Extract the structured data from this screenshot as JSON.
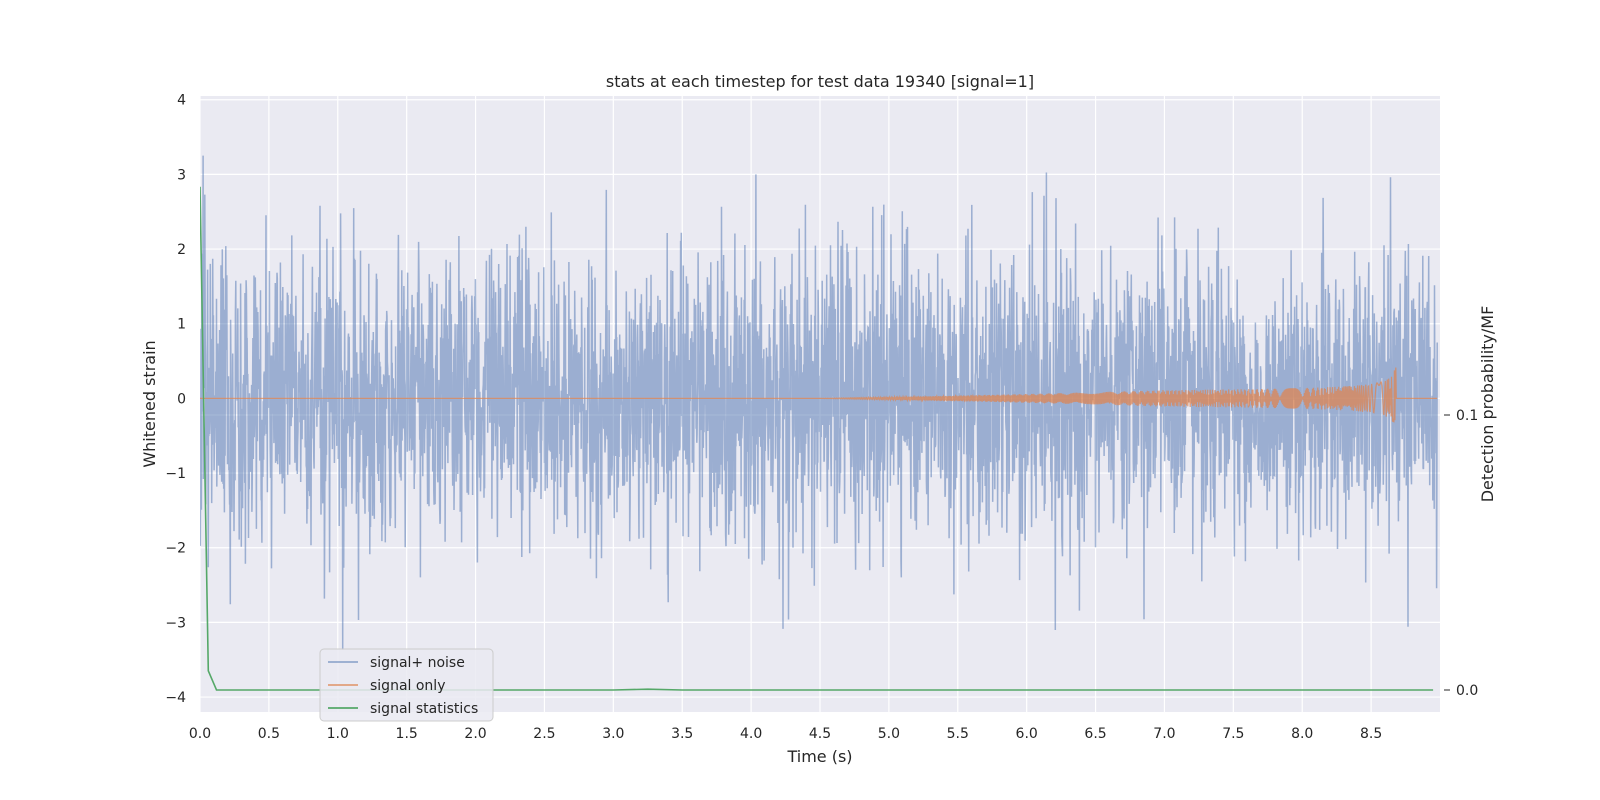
{
  "chart_data": {
    "type": "line",
    "title": "stats at each timestep for test data 19340 [signal=1]",
    "xlabel": "Time (s)",
    "ylabel": "Whitened strain",
    "y2label": "Detection probability/MF",
    "xlim": [
      0.0,
      9.0
    ],
    "ylim": [
      -4.2,
      4.05
    ],
    "y2lim": [
      -0.008,
      0.216
    ],
    "xticks": [
      "0.0",
      "0.5",
      "1.0",
      "1.5",
      "2.0",
      "2.5",
      "3.0",
      "3.5",
      "4.0",
      "4.5",
      "5.0",
      "5.5",
      "6.0",
      "6.5",
      "7.0",
      "7.5",
      "8.0",
      "8.5"
    ],
    "yticks": [
      "−4",
      "−3",
      "−2",
      "−1",
      "0",
      "1",
      "2",
      "3",
      "4"
    ],
    "y2ticks": [
      "0.0",
      "0.1"
    ],
    "grid": true,
    "legend_placement": "lower-left",
    "colors": {
      "noise": "#4c72b0",
      "signal": "#dd8452",
      "stats": "#55a868",
      "background": "#eaeaf2",
      "grid": "#ffffff"
    },
    "series": [
      {
        "name": "signal+ noise",
        "description_values": "whitened gaussian noise, amplitude mostly within ±2, peaks up to about ±3.6",
        "amplitude_range": [
          -3.6,
          3.7
        ]
      },
      {
        "name": "signal only",
        "description_values": "chirp oscillation growing from ~0 near t=4.8 s to ±0.7 at t≈8.68 s, zero afterwards",
        "chirp_end_time": 8.68,
        "peak_amplitude": 0.7
      },
      {
        "name": "signal statistics",
        "axis": "right",
        "x": [
          0.0,
          0.06,
          0.12,
          0.5,
          1.0,
          2.0,
          3.0,
          3.25,
          3.5,
          4.0,
          5.0,
          6.0,
          7.0,
          8.0,
          8.95
        ],
        "values": [
          0.183,
          0.007,
          0.0,
          0.0,
          0.0,
          0.0,
          0.0,
          0.0003,
          0.0,
          0.0,
          0.0,
          0.0,
          0.0,
          0.0,
          0.0
        ]
      }
    ]
  }
}
